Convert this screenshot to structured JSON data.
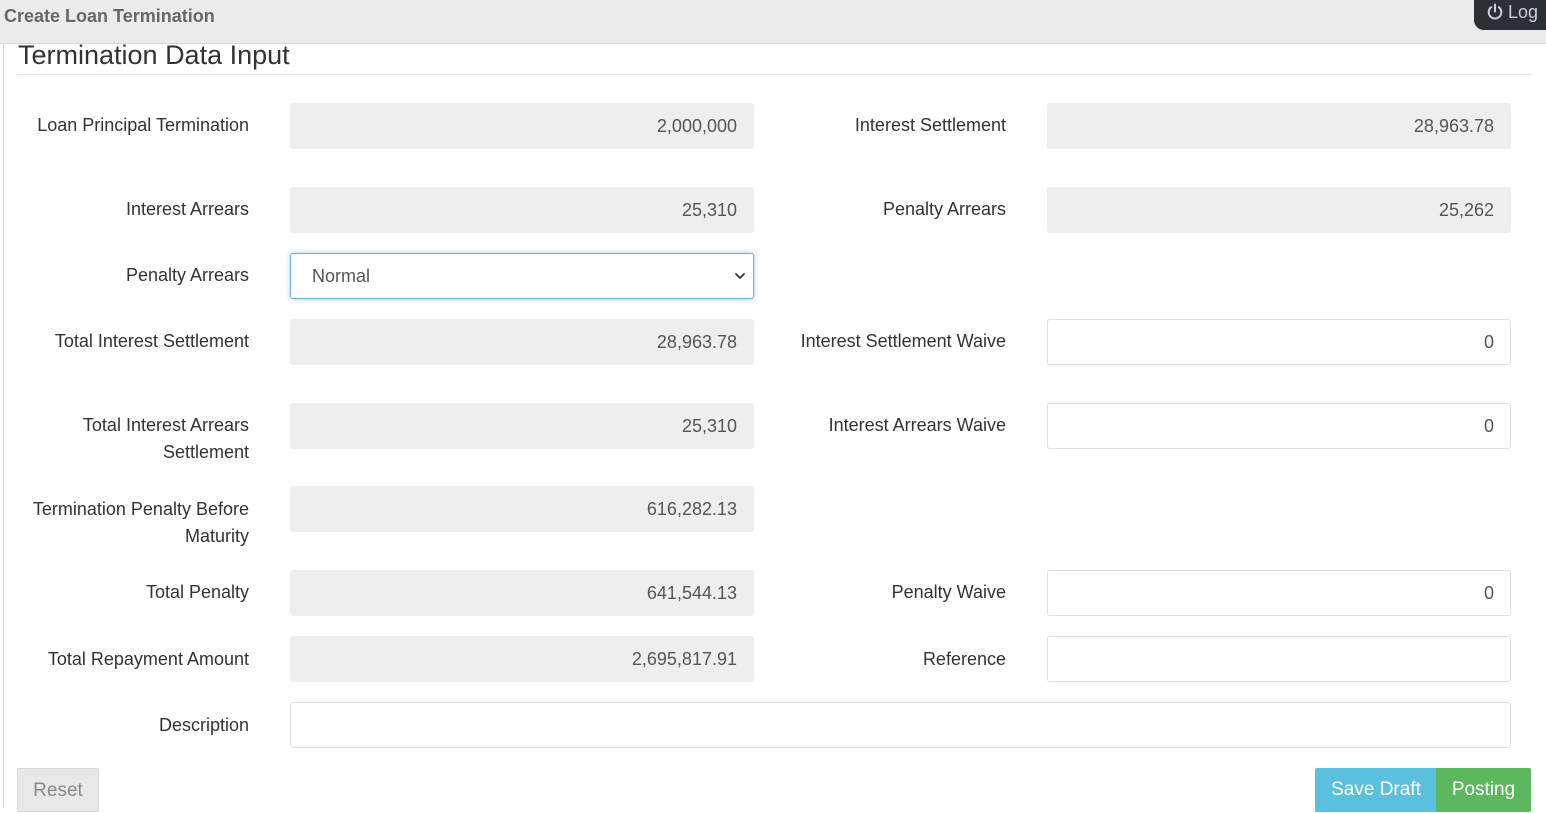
{
  "header": {
    "title": "Create Loan Termination",
    "logout_label": "Log"
  },
  "section": {
    "title": "Termination Data Input"
  },
  "fields": {
    "loan_principal_termination": {
      "label": "Loan Principal Termination",
      "value": "2,000,000"
    },
    "interest_settlement": {
      "label": "Interest Settlement",
      "value": "28,963.78"
    },
    "interest_arrears": {
      "label": "Interest Arrears",
      "value": "25,310"
    },
    "penalty_arrears": {
      "label": "Penalty Arrears",
      "value": "25,262"
    },
    "penalty_arrears_type": {
      "label": "Penalty Arrears",
      "selected": "Normal"
    },
    "total_interest_settlement": {
      "label": "Total Interest Settlement",
      "value": "28,963.78"
    },
    "interest_settlement_waive": {
      "label": "Interest Settlement Waive",
      "value": "0"
    },
    "total_interest_arrears_settlement": {
      "label": "Total Interest Arrears Settlement",
      "value": "25,310"
    },
    "interest_arrears_waive": {
      "label": "Interest Arrears Waive",
      "value": "0"
    },
    "termination_penalty_before_maturity": {
      "label": "Termination Penalty Before Maturity",
      "value": "616,282.13"
    },
    "total_penalty": {
      "label": "Total Penalty",
      "value": "641,544.13"
    },
    "penalty_waive": {
      "label": "Penalty Waive",
      "value": "0"
    },
    "total_repayment_amount": {
      "label": "Total Repayment Amount",
      "value": "2,695,817.91"
    },
    "reference": {
      "label": "Reference",
      "value": ""
    },
    "description": {
      "label": "Description",
      "value": ""
    }
  },
  "buttons": {
    "reset": "Reset",
    "save_draft": "Save Draft",
    "posting": "Posting"
  },
  "colors": {
    "save_draft": "#5bc0de",
    "posting": "#5cb85c",
    "focus": "#66afe9"
  }
}
